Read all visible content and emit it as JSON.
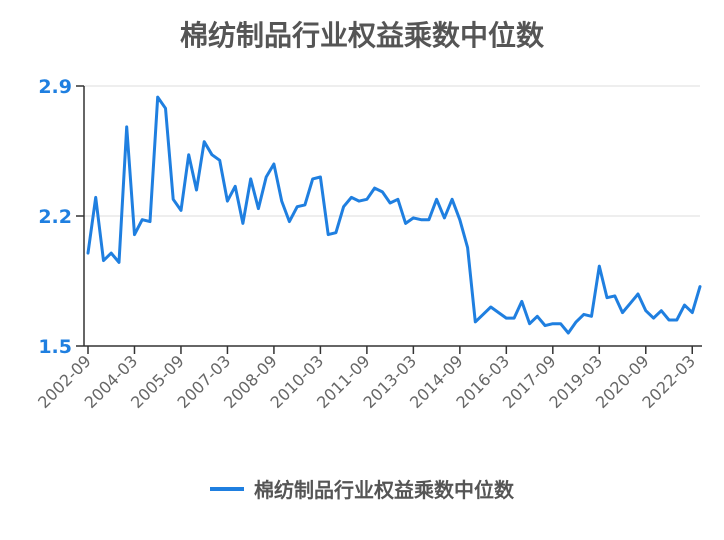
{
  "chart_data": {
    "type": "line",
    "title": "棉纺制品行业权益乘数中位数",
    "xlabel": "",
    "ylabel": "",
    "ylim": [
      1.5,
      2.9
    ],
    "yticks": [
      "1.5",
      "2.2",
      "2.9"
    ],
    "xticks": [
      "2002-09",
      "2004-03",
      "2005-09",
      "2007-03",
      "2008-09",
      "2010-03",
      "2011-09",
      "2013-03",
      "2014-09",
      "2016-03",
      "2017-09",
      "2019-03",
      "2020-09",
      "2022-03"
    ],
    "grid": true,
    "legend_position": "bottom",
    "color": "#1f7fe0",
    "series": [
      {
        "name": "棉纺制品行业权益乘数中位数",
        "values": [
          2.0,
          2.3,
          1.96,
          2.0,
          1.95,
          2.68,
          2.1,
          2.18,
          2.17,
          2.84,
          2.78,
          2.29,
          2.23,
          2.53,
          2.34,
          2.6,
          2.53,
          2.5,
          2.28,
          2.36,
          2.16,
          2.4,
          2.24,
          2.41,
          2.48,
          2.28,
          2.17,
          2.25,
          2.26,
          2.4,
          2.41,
          2.1,
          2.11,
          2.25,
          2.3,
          2.28,
          2.29,
          2.35,
          2.33,
          2.27,
          2.29,
          2.16,
          2.19,
          2.18,
          2.18,
          2.29,
          2.19,
          2.29,
          2.18,
          2.03,
          1.63,
          1.67,
          1.71,
          1.68,
          1.65,
          1.65,
          1.74,
          1.62,
          1.66,
          1.61,
          1.62,
          1.62,
          1.57,
          1.63,
          1.67,
          1.66,
          1.93,
          1.76,
          1.77,
          1.68,
          1.73,
          1.78,
          1.69,
          1.65,
          1.69,
          1.64,
          1.64,
          1.72,
          1.68,
          1.82
        ]
      }
    ]
  }
}
